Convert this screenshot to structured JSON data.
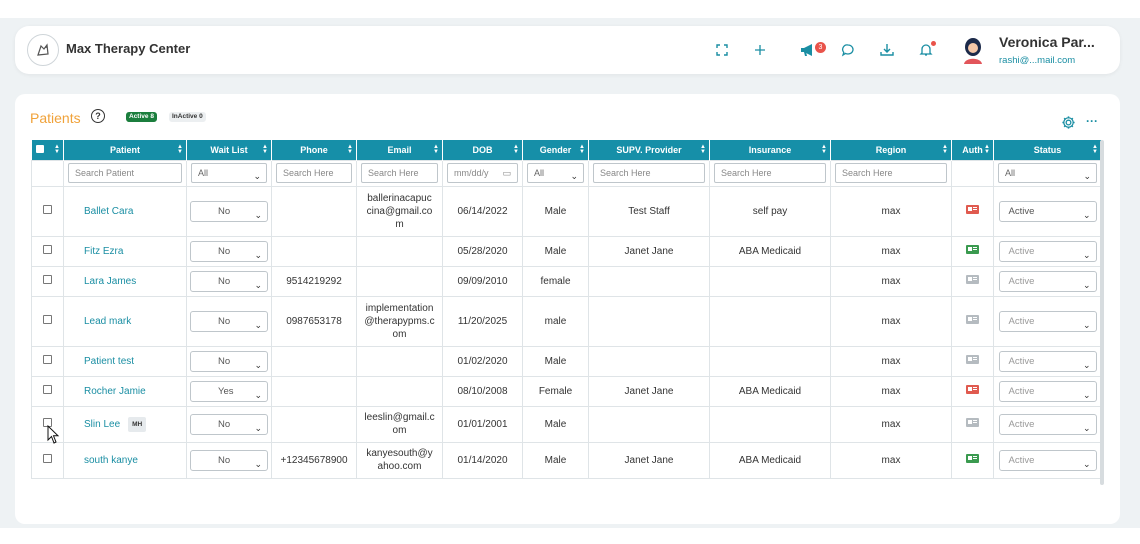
{
  "header": {
    "app_title": "Max Therapy Center",
    "icons": [
      "fullscreen-icon",
      "plus-icon",
      "megaphone-icon",
      "chat-icon",
      "download-icon",
      "bell-icon"
    ],
    "megaphone_badge": "3",
    "user_name": "Veronica Par...",
    "user_email": "rashi@...mail.com"
  },
  "patients": {
    "title": "Patients",
    "help": "?",
    "active_pill": "Active 8",
    "inactive_pill": "InActive 0",
    "more": "···"
  },
  "columns": {
    "patient": "Patient",
    "wait_list": "Wait List",
    "phone": "Phone",
    "email": "Email",
    "dob": "DOB",
    "gender": "Gender",
    "supv": "SUPV. Provider",
    "insurance": "Insurance",
    "region": "Region",
    "auth": "Auth",
    "status": "Status"
  },
  "filters": {
    "patient": "Search Patient",
    "wait_list": "All",
    "phone": "Search Here",
    "email": "Search Here",
    "dob": "mm/dd/y",
    "gender": "All",
    "supv": "Search Here",
    "insurance": "Search Here",
    "region": "Search Here",
    "status": "All"
  },
  "rows": [
    {
      "name": "Ballet Cara",
      "tag": "",
      "wait": "No",
      "phone": "",
      "email": "ballerinacapuc\ncina@gmail.co\nm",
      "dob": "06/14/2022",
      "gender": "Male",
      "supv": "Test Staff",
      "insurance": "self pay",
      "region": "max",
      "auth": "red",
      "status": "Active"
    },
    {
      "name": "Fitz Ezra",
      "tag": "",
      "wait": "No",
      "phone": "",
      "email": "",
      "dob": "05/28/2020",
      "gender": "Male",
      "supv": "Janet Jane",
      "insurance": "ABA Medicaid",
      "region": "max",
      "auth": "green",
      "status": "Active"
    },
    {
      "name": "Lara James",
      "tag": "",
      "wait": "No",
      "phone": "9514219292",
      "email": "",
      "dob": "09/09/2010",
      "gender": "female",
      "supv": "",
      "insurance": "",
      "region": "max",
      "auth": "gray",
      "status": "Active"
    },
    {
      "name": "Lead mark",
      "tag": "",
      "wait": "No",
      "phone": "0987653178",
      "email": "implementation\n@therapypms.c\nom",
      "dob": "11/20/2025",
      "gender": "male",
      "supv": "",
      "insurance": "",
      "region": "max",
      "auth": "gray",
      "status": "Active"
    },
    {
      "name": "Patient test",
      "tag": "",
      "wait": "No",
      "phone": "",
      "email": "",
      "dob": "01/02/2020",
      "gender": "Male",
      "supv": "",
      "insurance": "",
      "region": "max",
      "auth": "gray",
      "status": "Active"
    },
    {
      "name": "Rocher Jamie",
      "tag": "",
      "wait": "Yes",
      "phone": "",
      "email": "",
      "dob": "08/10/2008",
      "gender": "Female",
      "supv": "Janet Jane",
      "insurance": "ABA Medicaid",
      "region": "max",
      "auth": "red",
      "status": "Active"
    },
    {
      "name": "Slin Lee",
      "tag": "MH",
      "wait": "No",
      "phone": "",
      "email": "leeslin@gmail.c\nom",
      "dob": "01/01/2001",
      "gender": "Male",
      "supv": "",
      "insurance": "",
      "region": "max",
      "auth": "gray",
      "status": "Active"
    },
    {
      "name": "south kanye",
      "tag": "",
      "wait": "No",
      "phone": "+12345678900",
      "email": "kanyesouth@y\nahoo.com",
      "dob": "01/14/2020",
      "gender": "Male",
      "supv": "Janet Jane",
      "insurance": "ABA Medicaid",
      "region": "max",
      "auth": "green",
      "status": "Active"
    }
  ],
  "colors": {
    "header_teal": "#168fa8",
    "link_teal": "#1a8ea3",
    "title_orange": "#f0a23a",
    "active_green": "#1b7e3d",
    "badge_red": "#e9534a"
  }
}
